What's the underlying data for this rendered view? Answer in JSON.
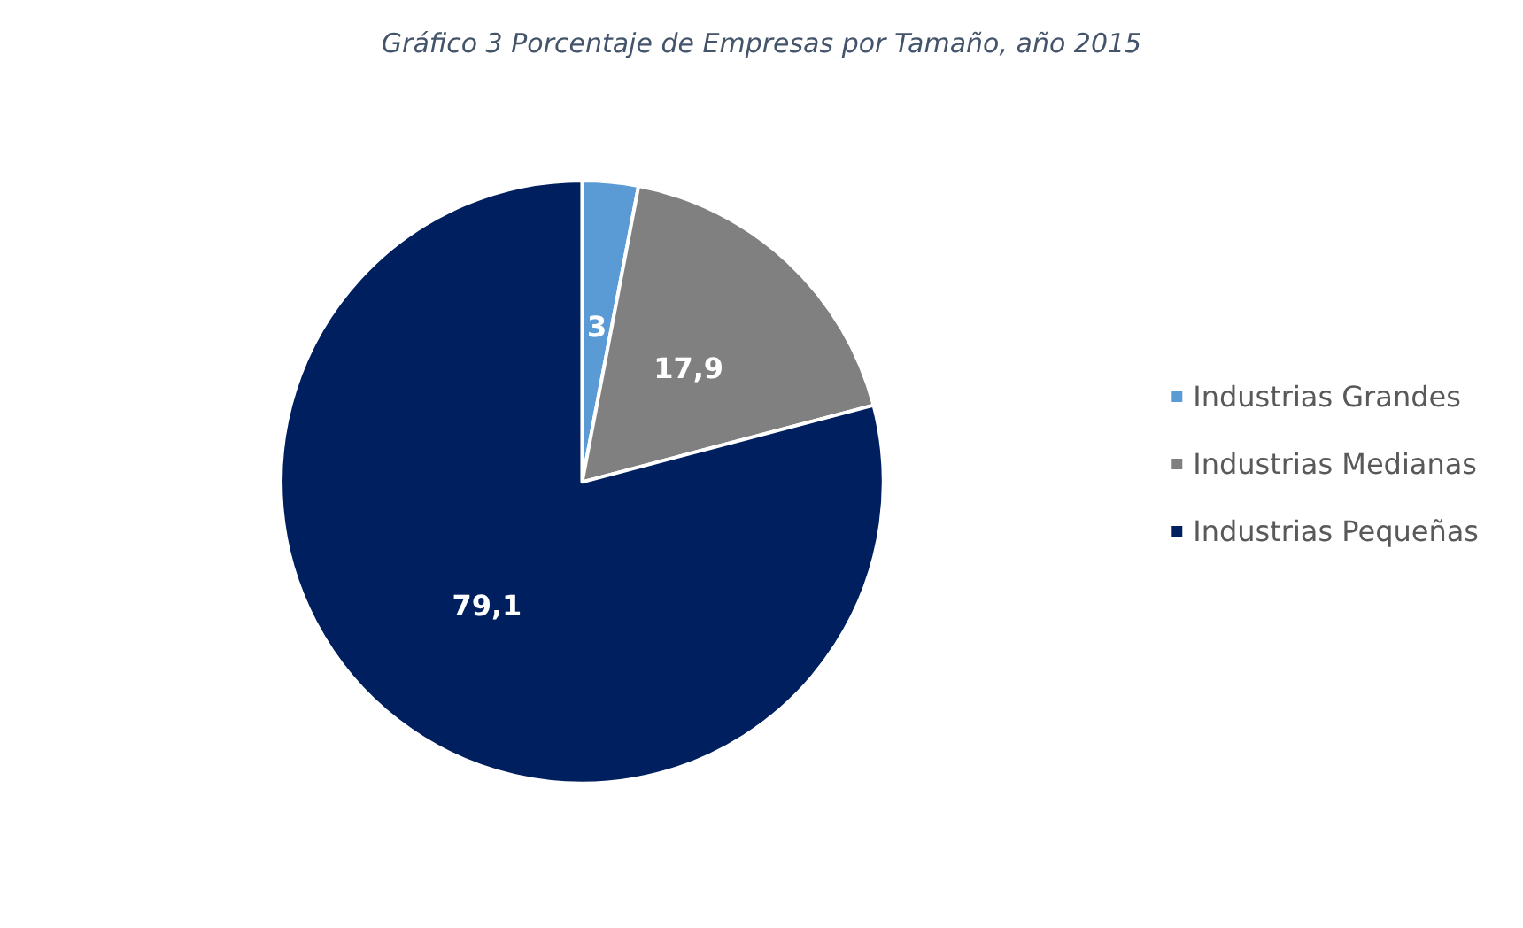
{
  "chart_data": {
    "type": "pie",
    "title": "Gráfico 3 Porcentaje de Empresas por Tamaño, año 2015",
    "categories": [
      "Industrias Grandes",
      "Industrias Medianas",
      "Industrias Pequeñas"
    ],
    "values": [
      3,
      17.9,
      79.1
    ],
    "colors": [
      "#5b9bd5",
      "#808080",
      "#001f5f"
    ],
    "value_labels": [
      "3",
      "17,9",
      "79,1"
    ],
    "legend": "right"
  }
}
